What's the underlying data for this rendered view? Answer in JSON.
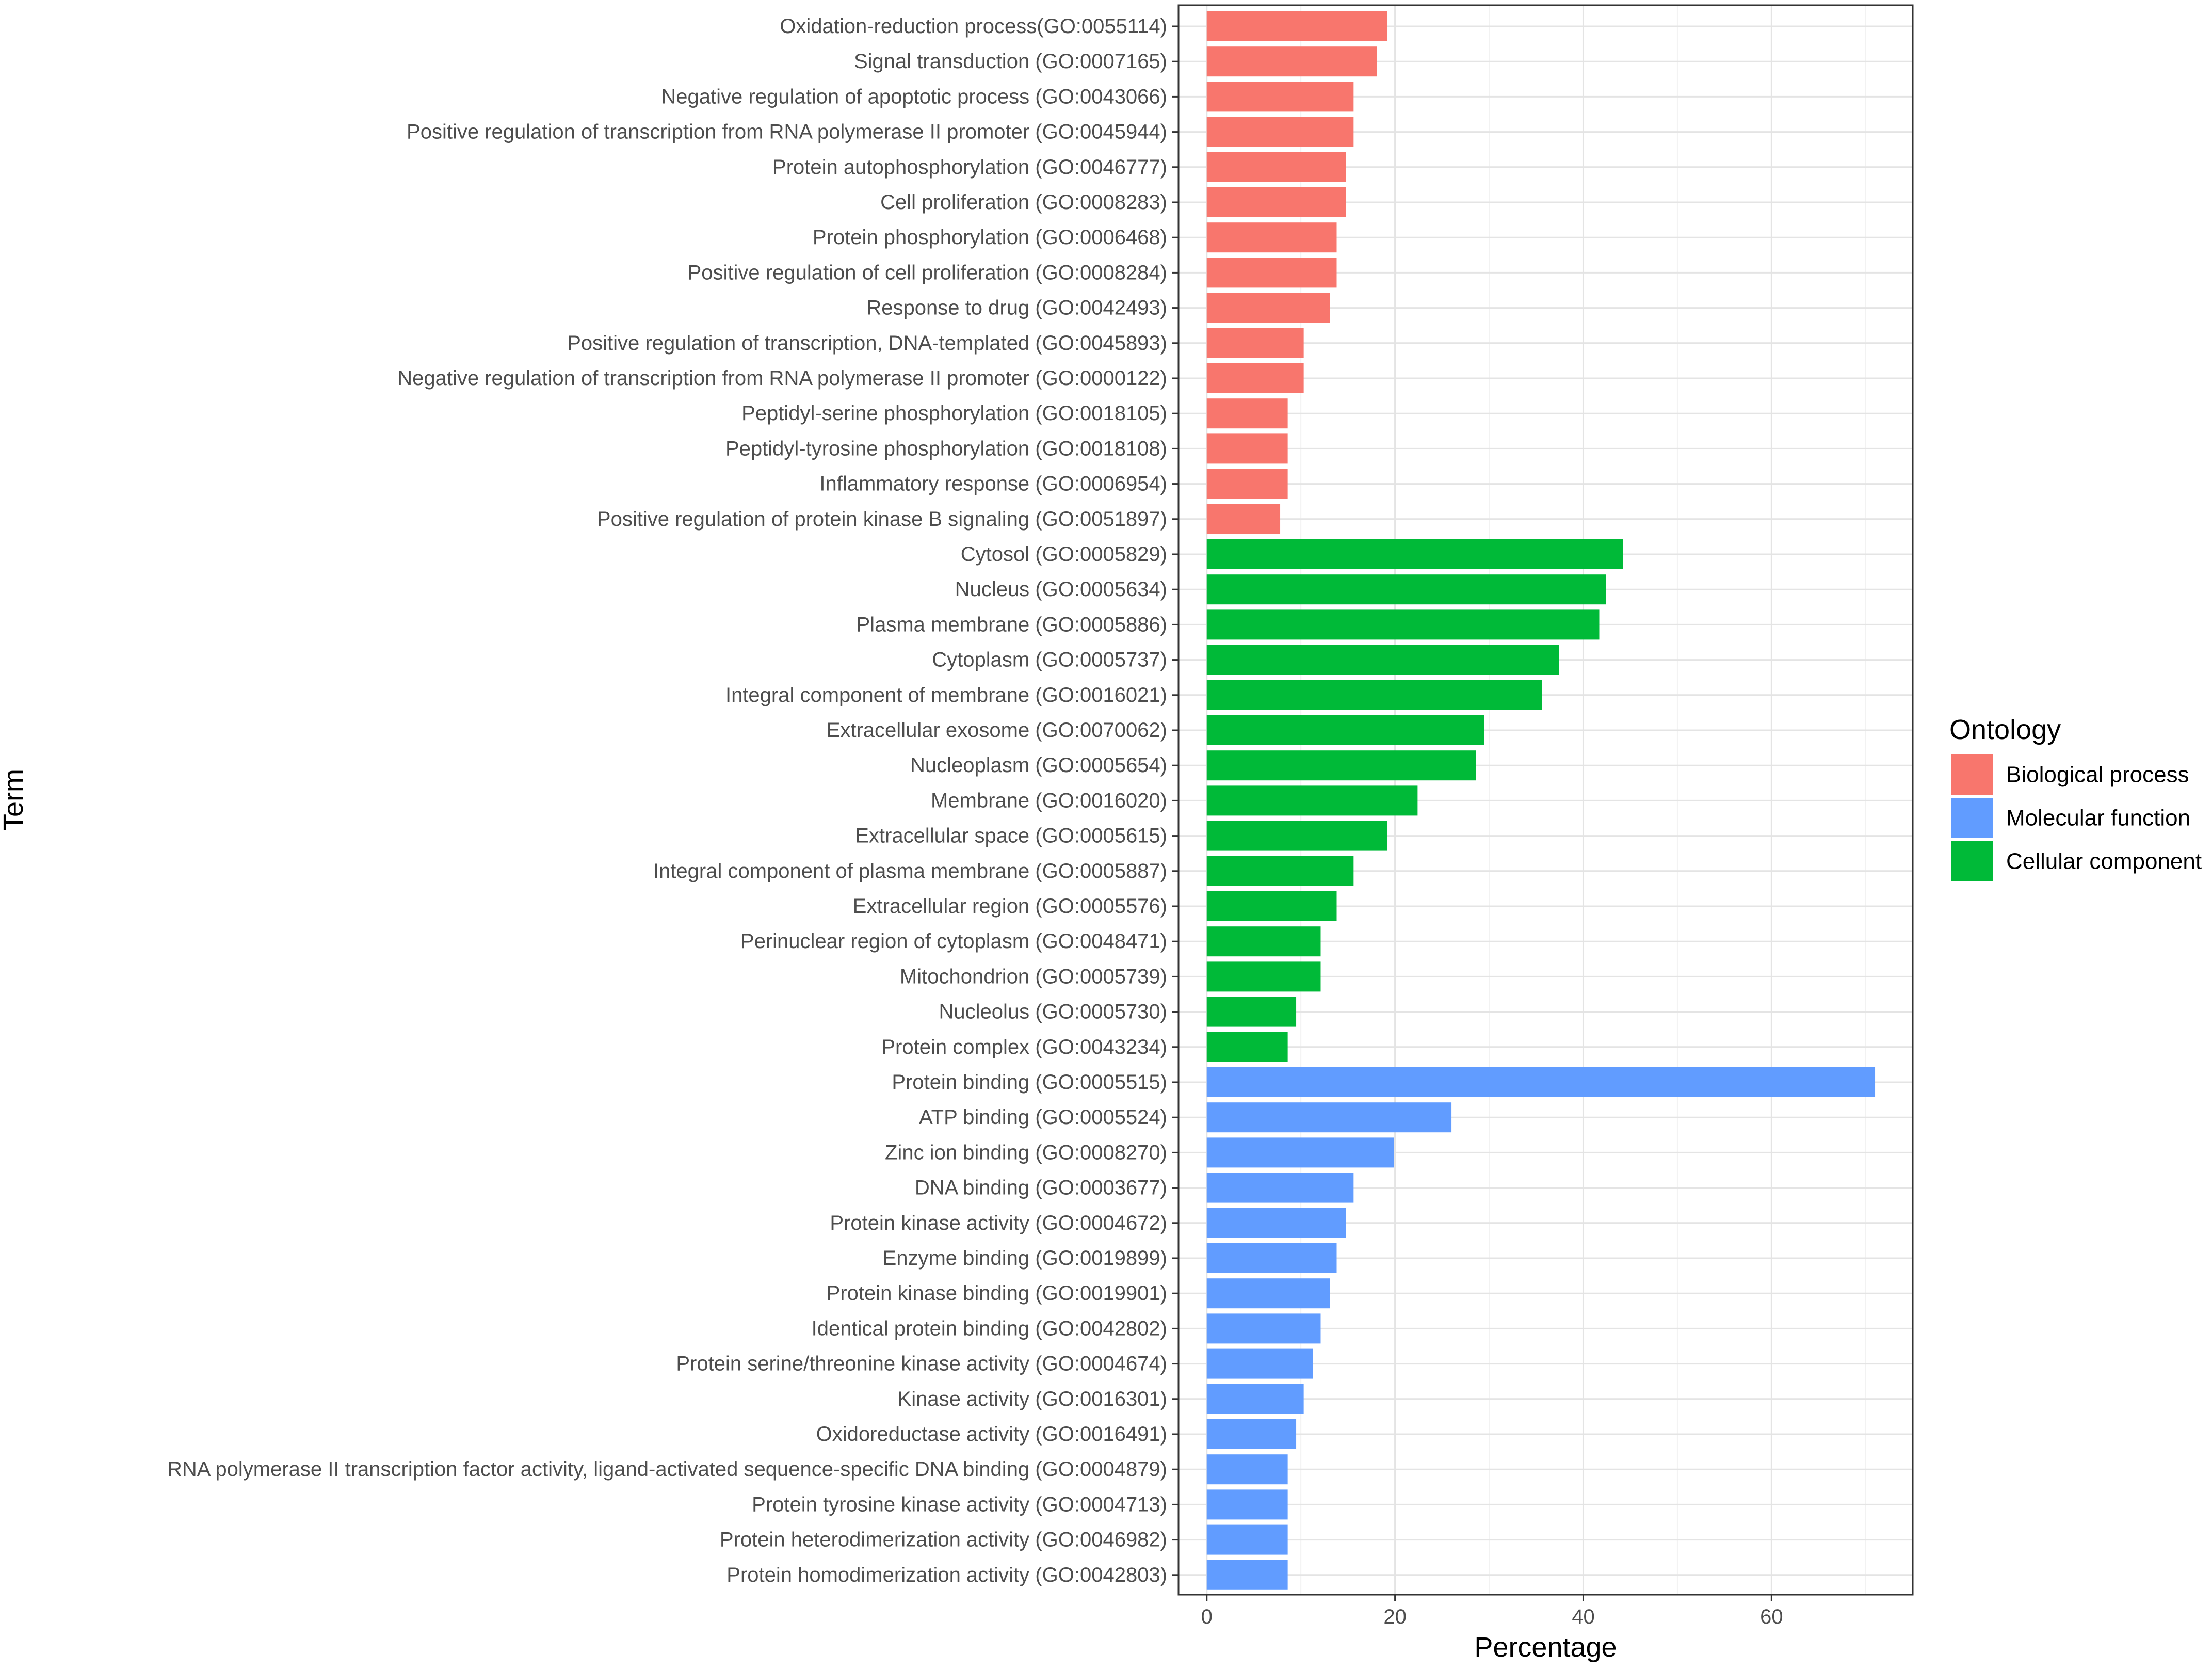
{
  "chart_data": {
    "type": "bar",
    "orientation": "horizontal",
    "xlabel": "Percentage",
    "ylabel": "Term",
    "xlim": [
      -3,
      75
    ],
    "xticks": [
      0,
      20,
      40,
      60
    ],
    "grid": true,
    "legend": {
      "title": "Ontology",
      "placement": "right",
      "entries": [
        {
          "name": "Biological process",
          "color": "#F8766D"
        },
        {
          "name": "Molecular function",
          "color": "#619CFF"
        },
        {
          "name": "Cellular component",
          "color": "#00BA38"
        }
      ]
    },
    "categories": [
      "Oxidation-reduction process(GO:0055114)",
      "Signal transduction (GO:0007165)",
      "Negative regulation of apoptotic process (GO:0043066)",
      "Positive regulation of transcription from RNA polymerase II promoter (GO:0045944)",
      "Protein autophosphorylation (GO:0046777)",
      "Cell proliferation (GO:0008283)",
      "Protein phosphorylation (GO:0006468)",
      "Positive regulation of cell proliferation (GO:0008284)",
      "Response to drug (GO:0042493)",
      "Positive regulation of transcription, DNA-templated (GO:0045893)",
      "Negative regulation of transcription from RNA polymerase II promoter (GO:0000122)",
      "Peptidyl-serine phosphorylation (GO:0018105)",
      "Peptidyl-tyrosine phosphorylation (GO:0018108)",
      "Inflammatory response (GO:0006954)",
      "Positive regulation of protein kinase B signaling (GO:0051897)",
      "Cytosol (GO:0005829)",
      "Nucleus (GO:0005634)",
      "Plasma membrane (GO:0005886)",
      "Cytoplasm (GO:0005737)",
      "Integral component of membrane (GO:0016021)",
      "Extracellular exosome (GO:0070062)",
      "Nucleoplasm (GO:0005654)",
      "Membrane (GO:0016020)",
      "Extracellular space (GO:0005615)",
      "Integral component of plasma membrane (GO:0005887)",
      "Extracellular region (GO:0005576)",
      "Perinuclear region of cytoplasm (GO:0048471)",
      "Mitochondrion (GO:0005739)",
      "Nucleolus (GO:0005730)",
      "Protein complex (GO:0043234)",
      "Protein binding (GO:0005515)",
      "ATP binding (GO:0005524)",
      "Zinc ion binding (GO:0008270)",
      "DNA binding (GO:0003677)",
      "Protein kinase activity (GO:0004672)",
      "Enzyme binding (GO:0019899)",
      "Protein kinase binding (GO:0019901)",
      "Identical protein binding (GO:0042802)",
      "Protein serine/threonine kinase activity (GO:0004674)",
      "Kinase activity (GO:0016301)",
      "Oxidoreductase activity (GO:0016491)",
      "RNA polymerase II transcription factor activity, ligand-activated sequence-specific DNA binding (GO:0004879)",
      "Protein tyrosine kinase activity (GO:0004713)",
      "Protein heterodimerization activity (GO:0046982)",
      "Protein homodimerization activity (GO:0042803)"
    ],
    "values": [
      19.2,
      18.1,
      15.6,
      15.6,
      14.8,
      14.8,
      13.8,
      13.8,
      13.1,
      10.3,
      10.3,
      8.6,
      8.6,
      8.6,
      7.8,
      44.2,
      42.4,
      41.7,
      37.4,
      35.6,
      29.5,
      28.6,
      22.4,
      19.2,
      15.6,
      13.8,
      12.1,
      12.1,
      9.5,
      8.6,
      71.0,
      26.0,
      19.9,
      15.6,
      14.8,
      13.8,
      13.1,
      12.1,
      11.3,
      10.3,
      9.5,
      8.6,
      8.6,
      8.6,
      8.6
    ],
    "ontology": [
      "Biological process",
      "Biological process",
      "Biological process",
      "Biological process",
      "Biological process",
      "Biological process",
      "Biological process",
      "Biological process",
      "Biological process",
      "Biological process",
      "Biological process",
      "Biological process",
      "Biological process",
      "Biological process",
      "Biological process",
      "Cellular component",
      "Cellular component",
      "Cellular component",
      "Cellular component",
      "Cellular component",
      "Cellular component",
      "Cellular component",
      "Cellular component",
      "Cellular component",
      "Cellular component",
      "Cellular component",
      "Cellular component",
      "Cellular component",
      "Cellular component",
      "Cellular component",
      "Molecular function",
      "Molecular function",
      "Molecular function",
      "Molecular function",
      "Molecular function",
      "Molecular function",
      "Molecular function",
      "Molecular function",
      "Molecular function",
      "Molecular function",
      "Molecular function",
      "Molecular function",
      "Molecular function",
      "Molecular function",
      "Molecular function"
    ]
  }
}
